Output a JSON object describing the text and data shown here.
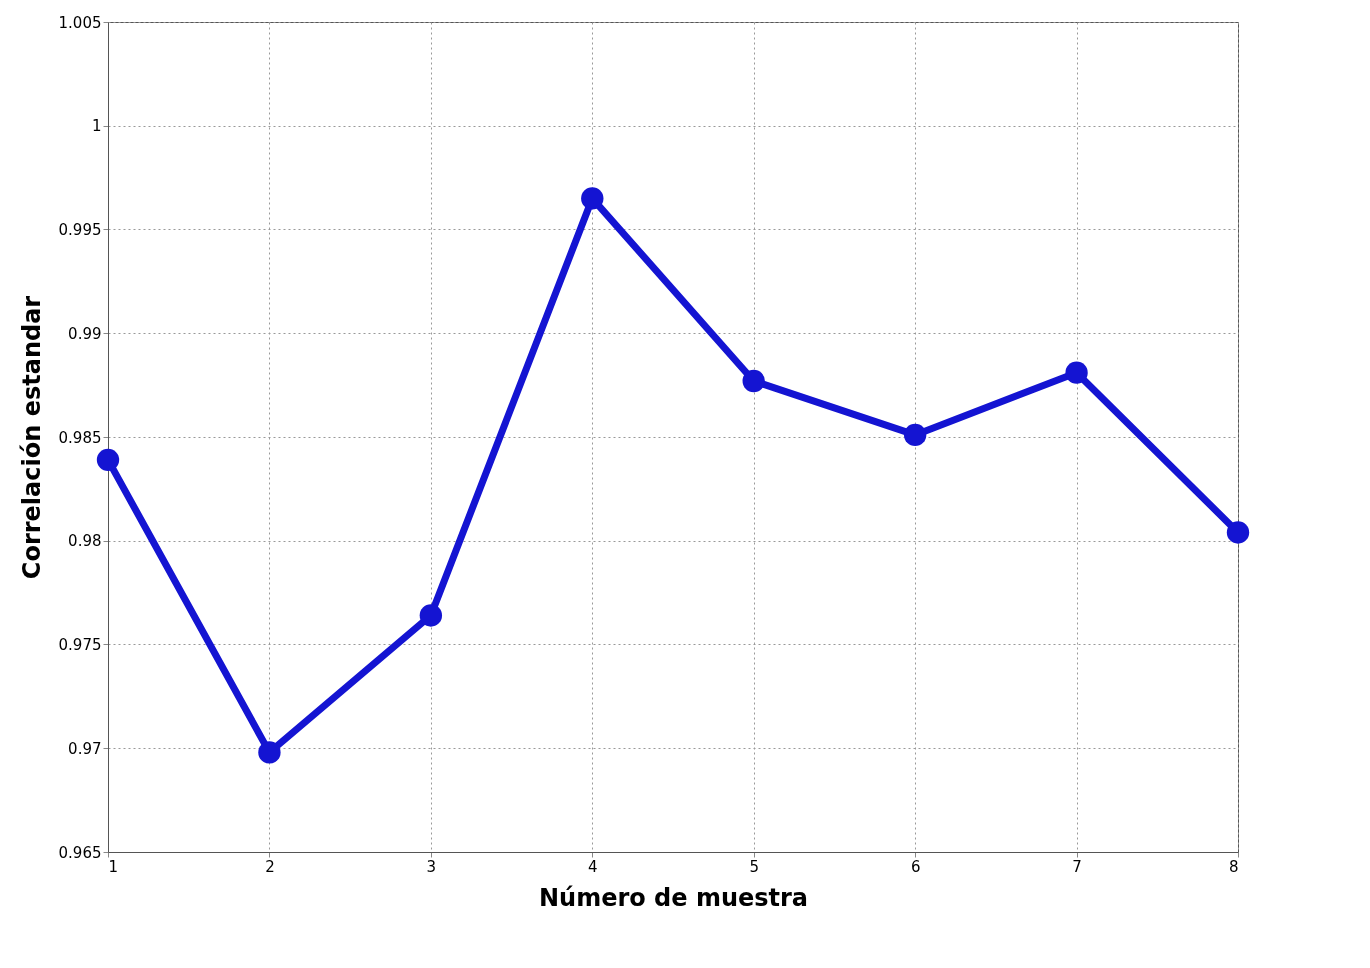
{
  "chart_data": {
    "type": "line",
    "xlabel": "Número de muestra",
    "ylabel": "Correlación estandar",
    "x": [
      1,
      2,
      3,
      4,
      5,
      6,
      7,
      8
    ],
    "series": [
      {
        "color": "#1414d2",
        "values": [
          0.9839,
          0.9698,
          0.9764,
          0.9965,
          0.9877,
          0.9851,
          0.9881,
          0.9804
        ]
      }
    ],
    "xlim": [
      1,
      8
    ],
    "xticks": [
      1,
      2,
      3,
      4,
      5,
      6,
      7,
      8
    ],
    "ylim": [
      0.965,
      1.005
    ],
    "yticks": [
      0.965,
      0.97,
      0.975,
      0.98,
      0.985,
      0.99,
      0.995,
      1,
      1.005
    ],
    "grid": true,
    "marker": "circle",
    "line_style": "solid"
  }
}
